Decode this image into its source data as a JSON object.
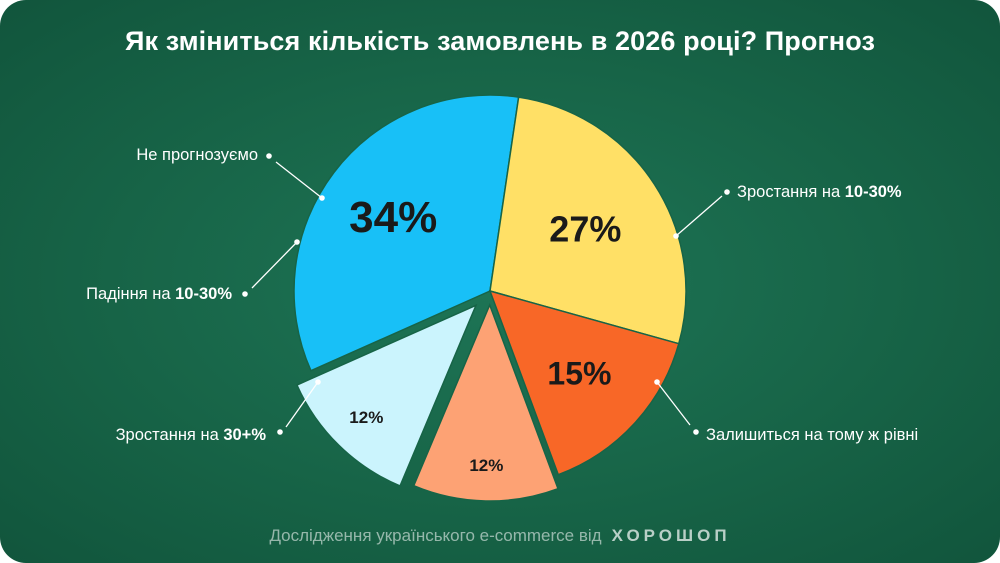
{
  "title": "Як зміниться кількість замовлень в 2026 році? Прогноз",
  "footer": {
    "text": "Дослідження українського e-commerce від",
    "brand": "ХОРОШОП"
  },
  "chart_data": {
    "type": "pie",
    "title": "Як зміниться кількість замовлень в 2026 році? Прогноз",
    "slices": [
      {
        "label_plain": "Зростання на ",
        "label_bold": "10-30%",
        "value": 34,
        "value_label": "34%",
        "color": "#18c0f7"
      },
      {
        "label_plain": "Залишиться на тому ж рівні",
        "label_bold": "",
        "value": 27,
        "value_label": "27%",
        "color": "#ffe066"
      },
      {
        "label_plain": "Зростання на ",
        "label_bold": "30+%",
        "value": 15,
        "value_label": "15%",
        "color": "#f86727"
      },
      {
        "label_plain": "Падіння на ",
        "label_bold": "10-30%",
        "value": 12,
        "value_label": "12%",
        "color": "#fda274"
      },
      {
        "label_plain": "Не прогнозуємо",
        "label_bold": "",
        "value": 12,
        "value_label": "12%",
        "color": "#cbf4fd"
      }
    ]
  }
}
